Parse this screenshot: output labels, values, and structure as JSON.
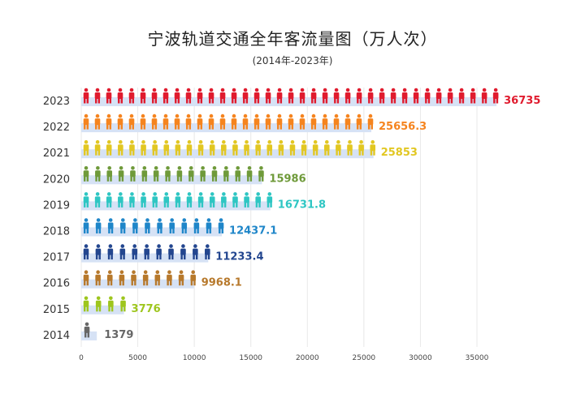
{
  "title": "宁波轨道交通全年客流量图（万人次）",
  "subtitle": "(2014年-2023年)",
  "chart_data": {
    "type": "bar",
    "orientation": "horizontal",
    "categories": [
      "2023",
      "2022",
      "2021",
      "2020",
      "2019",
      "2018",
      "2017",
      "2016",
      "2015",
      "2014"
    ],
    "values": [
      36735,
      25656.3,
      25853,
      15986,
      16731.8,
      12437.1,
      11233.4,
      9968.1,
      3776,
      1379
    ],
    "value_labels": [
      "36735",
      "25656.3",
      "25853",
      "15986",
      "16731.8",
      "12437.1",
      "11233.4",
      "9968.1",
      "3776",
      "1379"
    ],
    "colors": [
      "#e01b2e",
      "#f5841f",
      "#e2c722",
      "#6f9a3a",
      "#2ec6c3",
      "#1f86c9",
      "#23468f",
      "#b7792c",
      "#9ec61e",
      "#666666"
    ],
    "bar_color": "#d6e2f5",
    "xlim": [
      0,
      40000
    ],
    "xticks": [
      "0",
      "5000",
      "10000",
      "15000",
      "20000",
      "25000",
      "30000",
      "35000"
    ],
    "grid": true,
    "icon": "person-icon"
  }
}
